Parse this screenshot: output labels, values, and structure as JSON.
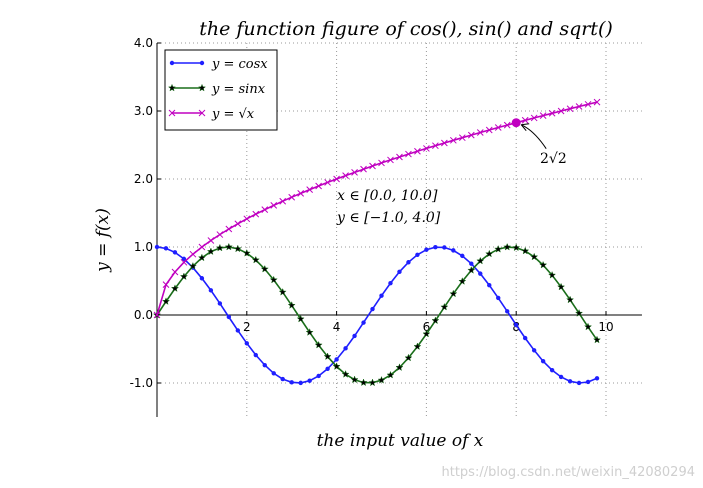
{
  "chart_data": {
    "type": "line",
    "title": "the function figure of cos(), sin() and sqrt()",
    "xlabel": "the input value of x",
    "ylabel": "y = f(x)",
    "xlim": [
      0,
      10.8
    ],
    "ylim": [
      -1.5,
      4.0
    ],
    "x_ticks": [
      2,
      4,
      6,
      8,
      10
    ],
    "x_tick_labels": [
      "2",
      "4",
      "6",
      "8",
      "10"
    ],
    "y_ticks": [
      -1.0,
      0.0,
      1.0,
      2.0,
      3.0,
      4.0
    ],
    "y_tick_labels": [
      "-1.0",
      "0.0",
      "1.0",
      "2.0",
      "3.0",
      "4.0"
    ],
    "grid": true,
    "legend_position": "top-left",
    "x_range": [
      0.0,
      10.0
    ],
    "x_step": 0.2,
    "series": [
      {
        "name": "y = cosx",
        "function": "cos",
        "color": "#1f1fff",
        "marker": "dot"
      },
      {
        "name": "y = sinx",
        "function": "sin",
        "color": "#1a6e1a",
        "marker": "star"
      },
      {
        "name": "y = √x",
        "function": "sqrt",
        "color": "#c000c0",
        "marker": "x"
      }
    ],
    "annotations": [
      {
        "text": "2√2",
        "point": [
          8,
          2.828
        ],
        "kind": "arrow"
      },
      {
        "text_line1": "x ∈ [0.0,  10.0]",
        "text_line2": "y ∈ [−1.0,  4.0]",
        "kind": "text"
      }
    ],
    "watermark": "https://blog.csdn.net/weixin_42080294"
  }
}
